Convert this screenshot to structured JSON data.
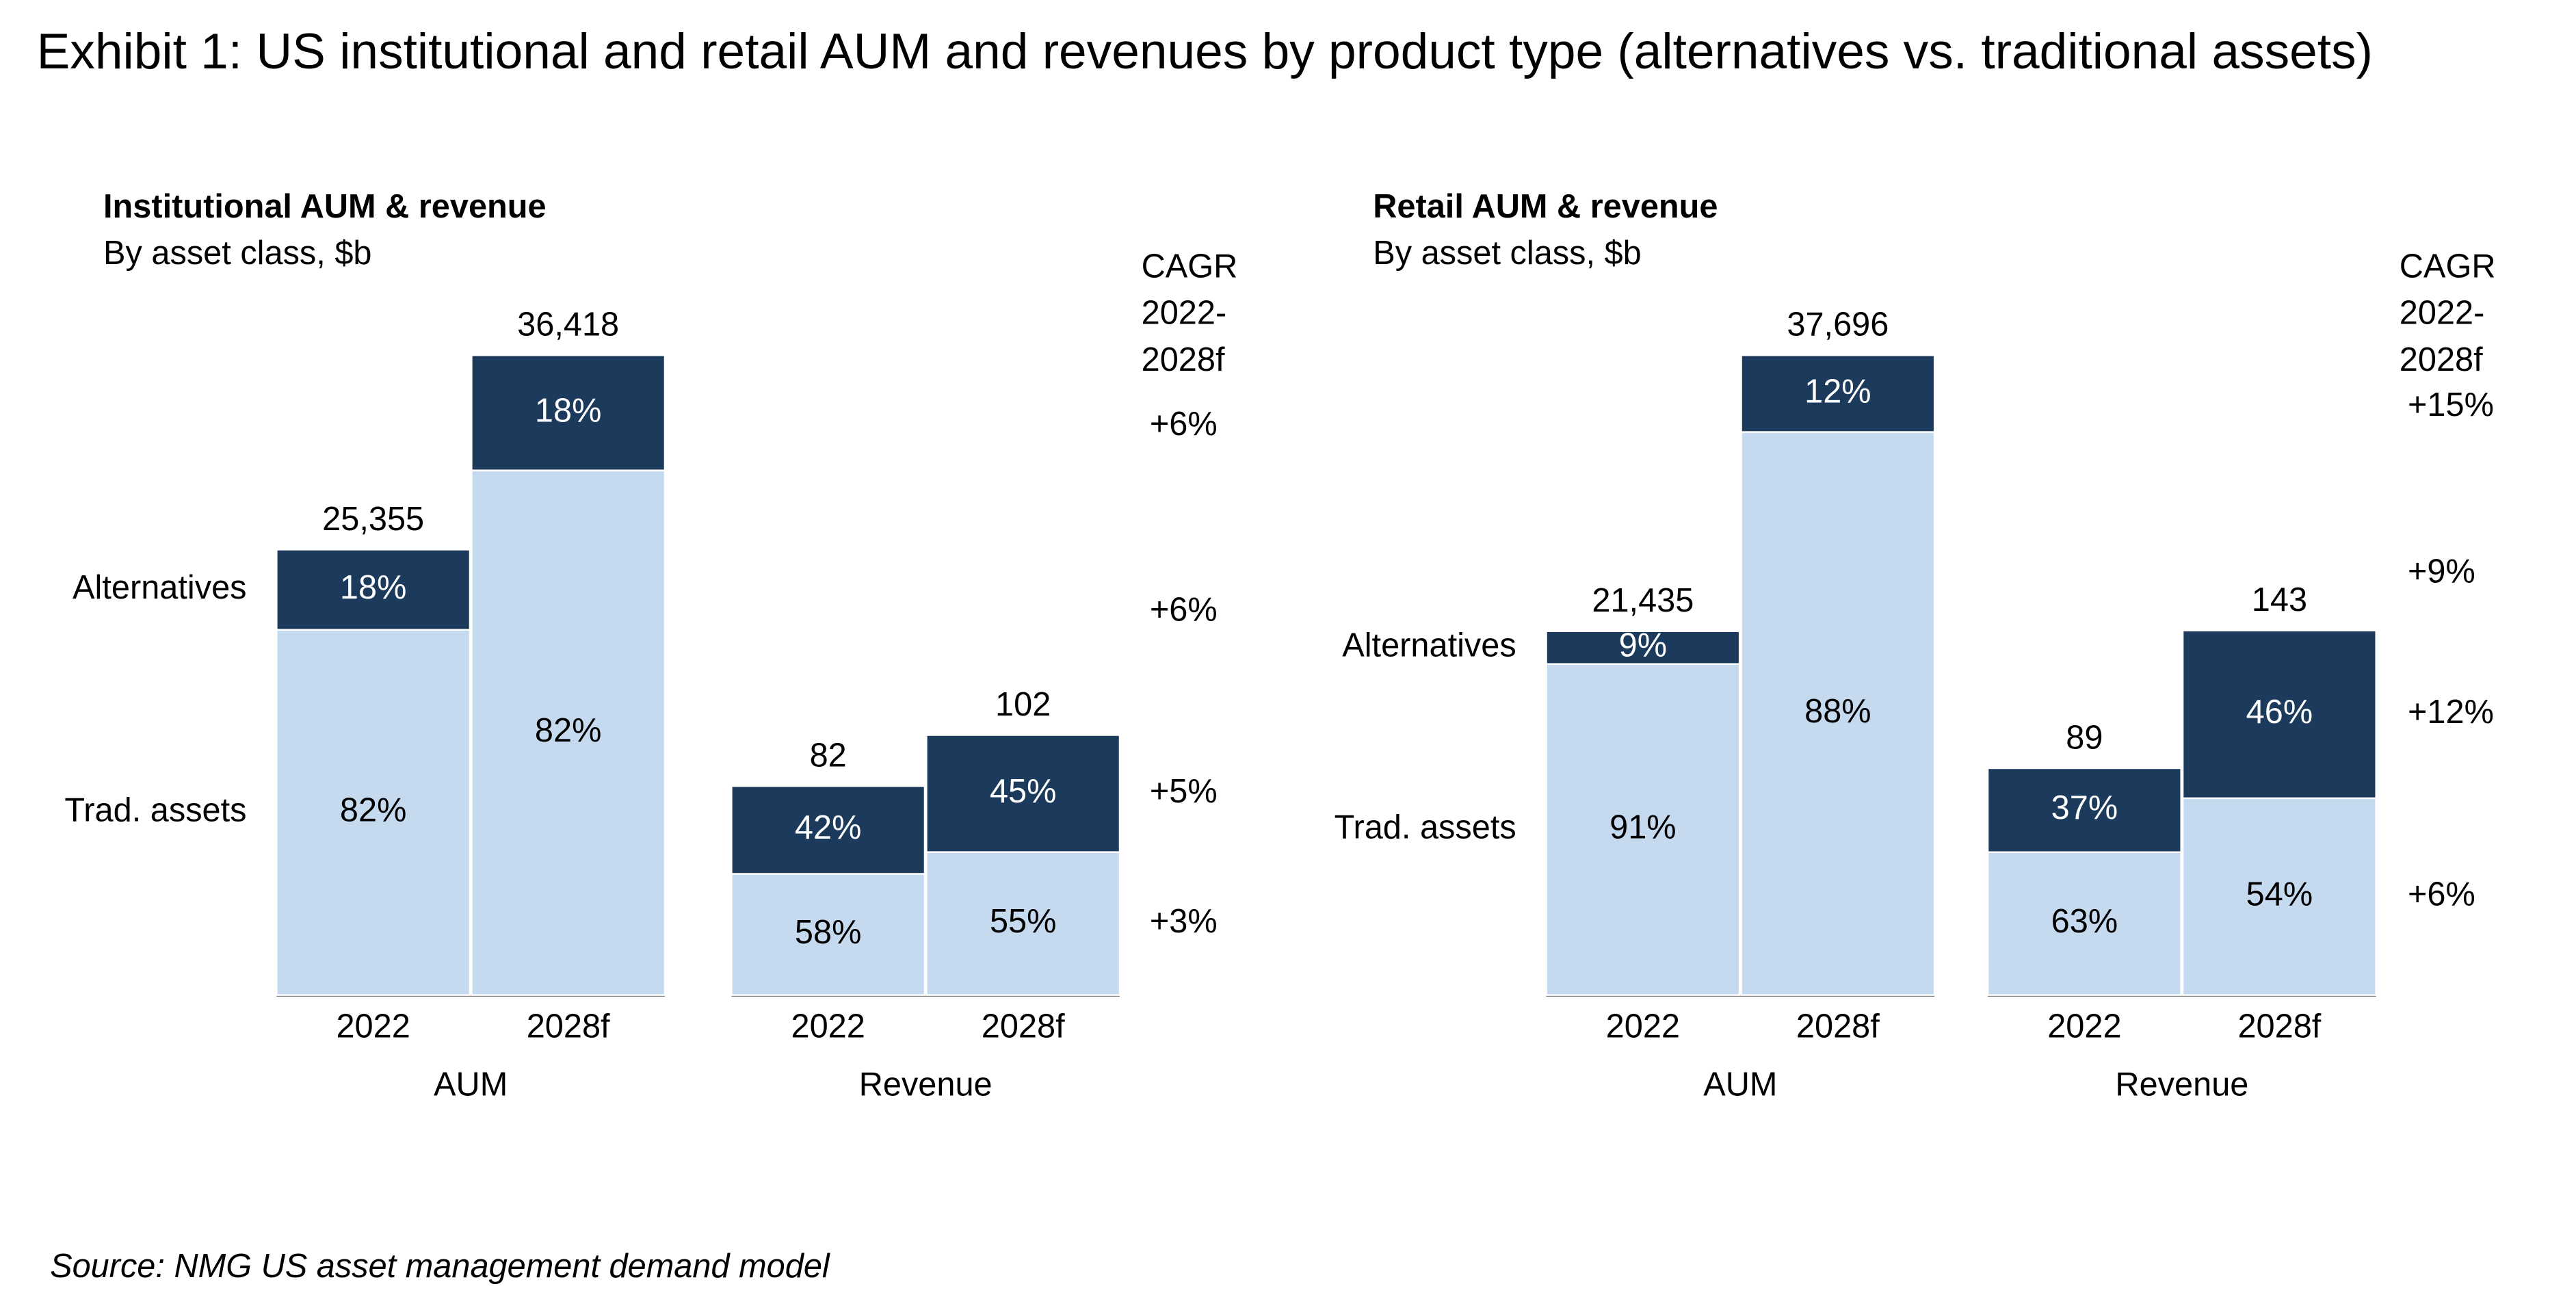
{
  "title": "Exhibit 1: US institutional and retail AUM and revenues by product type (alternatives vs. traditional assets)",
  "source": "Source: NMG US asset management demand model",
  "chart_data": [
    {
      "type": "bar",
      "stacked": true,
      "title": "Institutional AUM & revenue",
      "subtitle": "By asset class, $b",
      "cagr_title": [
        "CAGR",
        "2022-",
        "2028f"
      ],
      "series": [
        {
          "name": "Alternatives",
          "color": "#1b3a5c"
        },
        {
          "name": "Trad. assets",
          "color": "#c5d9ef"
        }
      ],
      "groups": [
        {
          "name": "AUM",
          "categories": [
            "2022",
            "2028f"
          ],
          "totals": [
            25355,
            36418
          ],
          "total_labels": [
            "25,355",
            "36,418"
          ],
          "shares": [
            [
              18,
              18
            ],
            [
              82,
              82
            ]
          ],
          "share_labels": [
            [
              "18%",
              "18%"
            ],
            [
              "82%",
              "82%"
            ]
          ],
          "cagr": [
            "+6%",
            "+6%"
          ]
        },
        {
          "name": "Revenue",
          "categories": [
            "2022",
            "2028f"
          ],
          "totals": [
            82,
            102
          ],
          "shares": [
            [
              42,
              45
            ],
            [
              58,
              55
            ]
          ],
          "share_labels": [
            [
              "42%",
              "45%"
            ],
            [
              "58%",
              "55%"
            ]
          ],
          "cagr": [
            "+5%",
            "+3%"
          ]
        }
      ]
    },
    {
      "type": "bar",
      "stacked": true,
      "title": "Retail AUM & revenue",
      "subtitle": "By asset class, $b",
      "cagr_title": [
        "CAGR",
        "2022-",
        "2028f"
      ],
      "series": [
        {
          "name": "Alternatives",
          "color": "#1b3a5c"
        },
        {
          "name": "Trad. assets",
          "color": "#c5d9ef"
        }
      ],
      "groups": [
        {
          "name": "AUM",
          "categories": [
            "2022",
            "2028f"
          ],
          "totals": [
            21435,
            37696
          ],
          "total_labels": [
            "21,435",
            "37,696"
          ],
          "shares": [
            [
              9,
              12
            ],
            [
              91,
              88
            ]
          ],
          "share_labels": [
            [
              "9%",
              "12%"
            ],
            [
              "91%",
              "88%"
            ]
          ],
          "cagr": [
            "+15%",
            "+9%"
          ]
        },
        {
          "name": "Revenue",
          "categories": [
            "2022",
            "2028f"
          ],
          "totals": [
            89,
            143
          ],
          "shares": [
            [
              37,
              46
            ],
            [
              63,
              54
            ]
          ],
          "share_labels": [
            [
              "37%",
              "46%"
            ],
            [
              "63%",
              "54%"
            ]
          ],
          "cagr": [
            "+12%",
            "+6%"
          ]
        }
      ]
    }
  ]
}
